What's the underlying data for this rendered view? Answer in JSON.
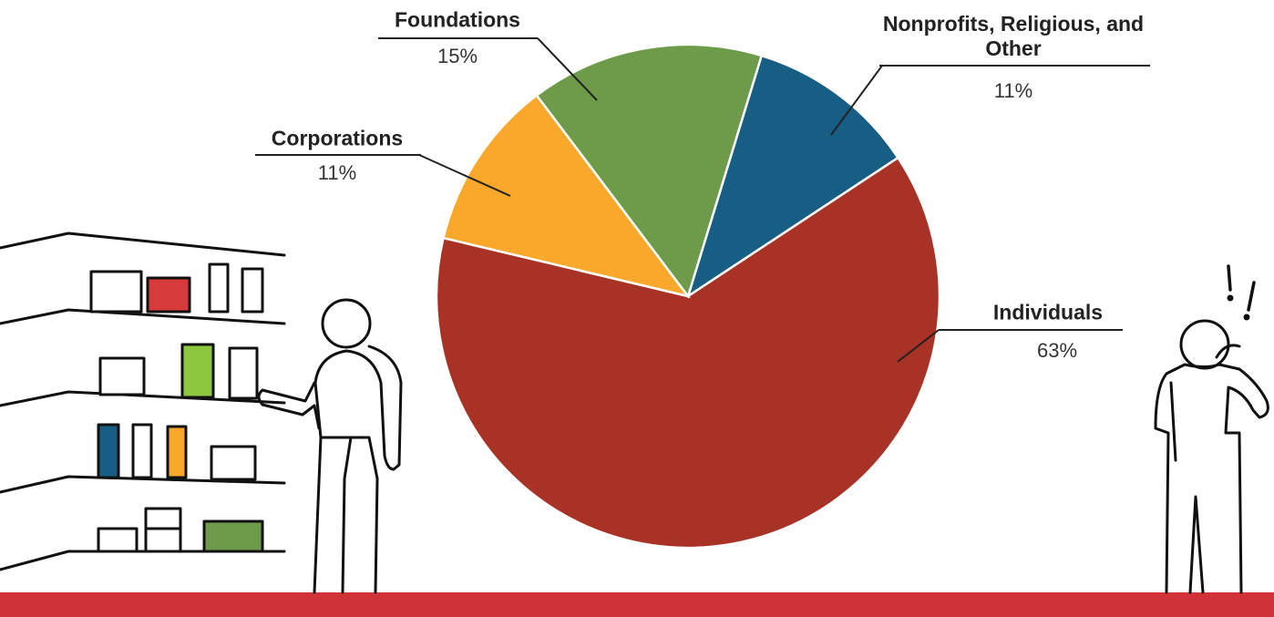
{
  "chart_data": {
    "type": "pie",
    "categories": [
      "Nonprofits, Religious, and Other",
      "Individuals",
      "Corporations",
      "Foundations"
    ],
    "values": [
      11,
      63,
      11,
      15
    ],
    "value_labels": [
      "11%",
      "63%",
      "11%",
      "15%"
    ],
    "colors": [
      "#175e85",
      "#a93226",
      "#f9a82b",
      "#6e9b4a"
    ]
  }
}
